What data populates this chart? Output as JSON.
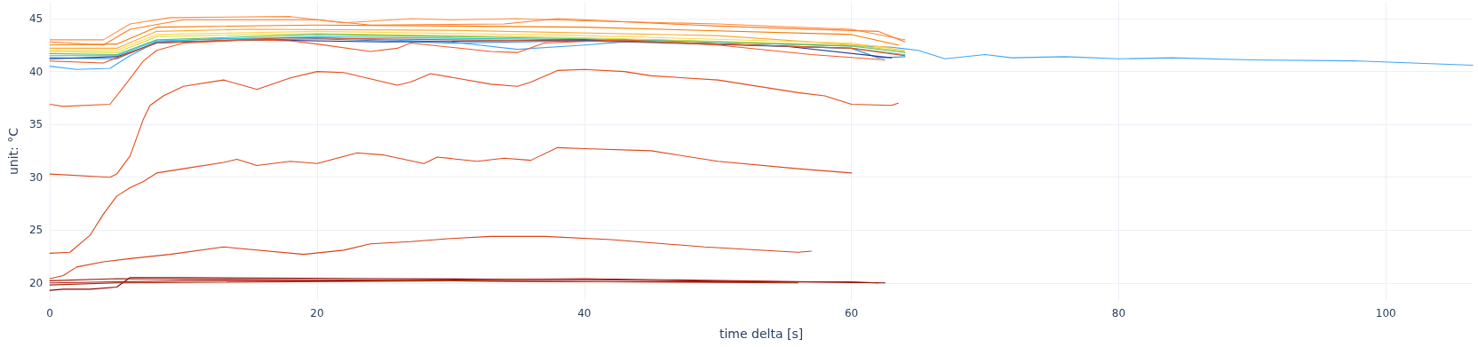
{
  "chart_data": {
    "type": "line",
    "xlabel": "time delta [s]",
    "ylabel": "unit: °C",
    "xlim": [
      0,
      106.5
    ],
    "ylim": [
      18.3,
      46.6
    ],
    "xticks": [
      0,
      20,
      40,
      60,
      80,
      100
    ],
    "yticks": [
      20,
      25,
      30,
      35,
      40,
      45
    ],
    "grid": true,
    "marker": "none",
    "line_style": "solid",
    "series": [
      {
        "color": "#42a5f5",
        "x": [
          0,
          2,
          4.5,
          6,
          8,
          12,
          20,
          30,
          35,
          40,
          45,
          55,
          63,
          65,
          67,
          70,
          72,
          76,
          80,
          84,
          90,
          98,
          102,
          106.5
        ],
        "values": [
          40.5,
          40.2,
          40.3,
          41.5,
          42.8,
          43.1,
          43.2,
          42.8,
          42.1,
          42.5,
          43.0,
          42.6,
          42.3,
          42.0,
          41.2,
          41.6,
          41.3,
          41.4,
          41.2,
          41.3,
          41.1,
          41.0,
          40.8,
          40.6
        ]
      },
      {
        "color": "#ff8c3a",
        "x": [
          0,
          4,
          6,
          9,
          18,
          22,
          27,
          30,
          35,
          40,
          50,
          60,
          64
        ],
        "values": [
          43.0,
          43.0,
          44.5,
          45.1,
          45.2,
          44.6,
          45.0,
          44.9,
          45.0,
          44.8,
          44.5,
          44.0,
          43.0
        ]
      },
      {
        "color": "#ff7a28",
        "x": [
          0,
          4,
          6,
          10,
          20,
          24,
          34,
          38,
          50,
          62,
          64
        ],
        "values": [
          42.8,
          42.5,
          44.0,
          44.9,
          44.9,
          44.4,
          44.5,
          45.0,
          44.3,
          43.8,
          42.8
        ]
      },
      {
        "color": "#f57c00",
        "x": [
          0,
          5,
          8,
          20,
          40,
          60,
          63.5
        ],
        "values": [
          42.5,
          42.6,
          44.2,
          44.4,
          44.2,
          43.5,
          42.5
        ]
      },
      {
        "color": "#ffa726",
        "x": [
          0,
          5,
          8,
          15,
          30,
          50,
          63
        ],
        "values": [
          42.2,
          42.2,
          43.8,
          44.0,
          43.9,
          43.4,
          42.3
        ]
      },
      {
        "color": "#ffd54f",
        "x": [
          0,
          5,
          8,
          20,
          40,
          60,
          64
        ],
        "values": [
          42.0,
          42.0,
          43.5,
          43.8,
          43.4,
          42.7,
          42.0
        ]
      },
      {
        "color": "#cddc39",
        "x": [
          0,
          5,
          8,
          20,
          40,
          60,
          64
        ],
        "values": [
          41.9,
          41.8,
          43.3,
          43.6,
          43.2,
          42.5,
          41.9
        ]
      },
      {
        "color": "#66bb6a",
        "x": [
          0,
          5,
          8,
          20,
          40,
          60,
          64
        ],
        "values": [
          41.7,
          41.6,
          43.0,
          43.5,
          43.1,
          42.4,
          41.8
        ]
      },
      {
        "color": "#26c6da",
        "x": [
          0,
          5,
          8,
          20,
          40,
          60,
          64
        ],
        "values": [
          41.5,
          41.5,
          42.9,
          43.3,
          43.0,
          42.2,
          41.6
        ]
      },
      {
        "color": "#1e88e5",
        "x": [
          0,
          5,
          8,
          20,
          30,
          40,
          60,
          62,
          64
        ],
        "values": [
          41.3,
          41.2,
          42.8,
          43.1,
          42.7,
          42.9,
          42.2,
          41.3,
          41.4
        ]
      },
      {
        "color": "#283593",
        "x": [
          0,
          5,
          8,
          15,
          25,
          40,
          55,
          63
        ],
        "values": [
          41.2,
          41.4,
          42.7,
          43.0,
          42.8,
          43.0,
          42.4,
          41.3
        ]
      },
      {
        "color": "#e8501e",
        "x": [
          0,
          4,
          5,
          8,
          18,
          30,
          45,
          60,
          64
        ],
        "values": [
          41.0,
          40.8,
          41.3,
          42.7,
          43.2,
          43.0,
          42.8,
          42.2,
          41.5
        ]
      },
      {
        "color": "#ef5a24",
        "x": [
          0,
          1,
          4.5,
          5.5,
          7,
          8,
          10,
          15,
          18,
          20,
          24,
          26,
          27,
          30,
          33,
          35,
          37,
          43,
          50,
          57,
          62.5
        ],
        "values": [
          36.9,
          36.7,
          36.9,
          38.5,
          41.0,
          42.0,
          42.7,
          43.0,
          42.9,
          42.6,
          41.9,
          42.2,
          42.7,
          42.3,
          41.9,
          41.8,
          42.7,
          43.0,
          42.5,
          41.6,
          41.1
        ]
      },
      {
        "color": "#e64a19",
        "x": [
          0,
          4.5,
          5,
          6,
          7,
          7.5,
          8.5,
          10,
          13,
          15.5,
          18,
          20,
          22,
          26,
          27,
          28.5,
          33,
          35,
          36,
          38,
          40,
          43,
          45,
          50,
          56,
          58,
          60,
          63,
          63.5
        ],
        "values": [
          30.3,
          30.0,
          30.3,
          32.0,
          35.5,
          36.8,
          37.7,
          38.6,
          39.2,
          38.3,
          39.4,
          40.0,
          39.9,
          38.7,
          39.0,
          39.8,
          38.8,
          38.6,
          39.0,
          40.1,
          40.2,
          40.0,
          39.6,
          39.2,
          38.0,
          37.7,
          36.9,
          36.8,
          37.0
        ]
      },
      {
        "color": "#e0461a",
        "x": [
          0,
          1.5,
          3,
          4,
          5,
          6,
          7,
          8,
          10,
          13,
          14,
          15.5,
          18,
          20,
          23,
          25,
          28,
          29,
          32,
          34,
          36,
          38,
          40,
          45,
          50,
          56,
          60
        ],
        "values": [
          22.8,
          22.9,
          24.5,
          26.5,
          28.2,
          29.0,
          29.6,
          30.4,
          30.8,
          31.4,
          31.7,
          31.1,
          31.5,
          31.3,
          32.3,
          32.1,
          31.3,
          31.9,
          31.5,
          31.8,
          31.6,
          32.8,
          32.7,
          32.5,
          31.5,
          30.8,
          30.4
        ]
      },
      {
        "color": "#d84315",
        "x": [
          0,
          1,
          2,
          4,
          6,
          9,
          13,
          19,
          22,
          24,
          27,
          30,
          33,
          37,
          42,
          49,
          56,
          57
        ],
        "values": [
          20.4,
          20.7,
          21.5,
          22.0,
          22.3,
          22.7,
          23.4,
          22.7,
          23.1,
          23.7,
          23.9,
          24.2,
          24.4,
          24.4,
          24.1,
          23.4,
          22.9,
          23.0
        ]
      },
      {
        "color": "#8b0000",
        "x": [
          0,
          1,
          3,
          5,
          6,
          10,
          25,
          40,
          62.5
        ],
        "values": [
          19.3,
          19.4,
          19.4,
          19.6,
          20.5,
          20.5,
          20.4,
          20.3,
          20.0
        ]
      },
      {
        "color": "#b71c1c",
        "x": [
          0,
          10,
          25,
          40,
          46,
          57
        ],
        "values": [
          20.0,
          20.2,
          20.2,
          20.4,
          20.3,
          20.1
        ]
      },
      {
        "color": "#9c1b0a",
        "x": [
          0,
          5,
          20,
          40,
          60,
          62
        ],
        "values": [
          20.2,
          20.4,
          20.3,
          20.1,
          20.1,
          20.0
        ]
      },
      {
        "color": "#a52a0a",
        "x": [
          0,
          5,
          30,
          56
        ],
        "values": [
          19.8,
          20.0,
          20.2,
          20.0
        ]
      }
    ]
  }
}
